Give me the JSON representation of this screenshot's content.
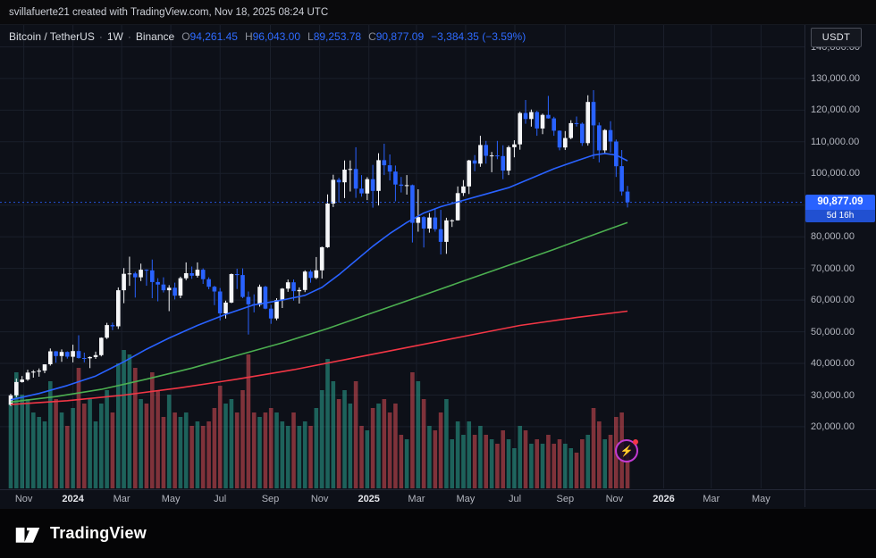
{
  "topbar": {
    "attribution": "svillafuerte21 created with TradingView.com, Nov 18, 2025 08:24 UTC"
  },
  "legend": {
    "symbol": "Bitcoin / TetherUS",
    "sep": "·",
    "interval": "1W",
    "exchange": "Binance",
    "ohlc": [
      {
        "k": "O",
        "v": "94,261.45"
      },
      {
        "k": "H",
        "v": "96,043.00"
      },
      {
        "k": "L",
        "v": "89,253.78"
      },
      {
        "k": "C",
        "v": "90,877.09"
      }
    ],
    "change": "−3,384.35 (−3.59%)"
  },
  "price_axis": {
    "currency_button": "USDT",
    "last_price_label": "90,877.09",
    "countdown": "5d 16h"
  },
  "icons": {
    "boost_glyph": "⚡"
  },
  "footer": {
    "brand": "TradingView"
  },
  "colors": {
    "accent_blue": "#2962ff",
    "candle_up": "#f5f6f8",
    "candle_down": "#2962ff",
    "volume_up": "rgba(44,166,148,0.55)",
    "volume_down": "rgba(242,84,91,0.5)",
    "ma_fast": "#2962ff",
    "ma_mid": "#4caf50",
    "ma_slow": "#f23645",
    "grid": "#1a1f2b",
    "axis_text": "#b2b5be",
    "badge_bg": "#2962ff"
  },
  "chart_data": {
    "type": "candlestick",
    "title": "Bitcoin / TetherUS 1W Binance",
    "interval": "1W",
    "start_week": "2023-10-16",
    "last_price": 90877.09,
    "volume_unit": "relative",
    "legend_position": "top-left",
    "grid": true,
    "y_range": [
      14000,
      147000
    ],
    "y_ticks": [
      {
        "price": 140000,
        "label": "140,000.00"
      },
      {
        "price": 130000,
        "label": "130,000.00"
      },
      {
        "price": 120000,
        "label": "120,000.00"
      },
      {
        "price": 110000,
        "label": "110,000.00"
      },
      {
        "price": 100000,
        "label": "100,000.00"
      },
      {
        "price": 90000,
        "label": ""
      },
      {
        "price": 80000,
        "label": "80,000.00"
      },
      {
        "price": 70000,
        "label": "70,000.00"
      },
      {
        "price": 60000,
        "label": "60,000.00"
      },
      {
        "price": 50000,
        "label": "50,000.00"
      },
      {
        "price": 40000,
        "label": "40,000.00"
      },
      {
        "price": 30000,
        "label": "30,000.00"
      },
      {
        "price": 20000,
        "label": "20,000.00"
      }
    ],
    "x_axis_labels": [
      {
        "label": "Nov",
        "week": 2.3
      },
      {
        "label": "2024",
        "week": 11,
        "year": true
      },
      {
        "label": "Mar",
        "week": 19.6
      },
      {
        "label": "May",
        "week": 28.3
      },
      {
        "label": "Jul",
        "week": 37
      },
      {
        "label": "Sep",
        "week": 45.9
      },
      {
        "label": "Nov",
        "week": 54.6
      },
      {
        "label": "2025",
        "week": 63.3,
        "year": true
      },
      {
        "label": "Mar",
        "week": 71.7
      },
      {
        "label": "May",
        "week": 80.4
      },
      {
        "label": "Jul",
        "week": 89.1
      },
      {
        "label": "Sep",
        "week": 98
      },
      {
        "label": "Nov",
        "week": 106.7
      },
      {
        "label": "2026",
        "week": 115.4,
        "year": true
      },
      {
        "label": "Mar",
        "week": 123.8
      },
      {
        "label": "May",
        "week": 132.6
      }
    ],
    "candles_format": [
      "open",
      "high",
      "low",
      "close",
      "volume"
    ],
    "candles": [
      [
        26900,
        30400,
        26500,
        29900,
        95
      ],
      [
        29900,
        35200,
        29300,
        34100,
        130
      ],
      [
        34100,
        36000,
        33900,
        34900,
        105
      ],
      [
        34900,
        38000,
        34500,
        37100,
        100
      ],
      [
        37100,
        37900,
        35500,
        37400,
        85
      ],
      [
        37400,
        38400,
        35800,
        37700,
        80
      ],
      [
        37700,
        39700,
        36900,
        39700,
        75
      ],
      [
        39700,
        44700,
        39300,
        43800,
        120
      ],
      [
        43800,
        43900,
        40200,
        42300,
        100
      ],
      [
        42300,
        44400,
        40500,
        43600,
        85
      ],
      [
        43600,
        43800,
        41500,
        42100,
        70
      ],
      [
        42100,
        45900,
        40300,
        43900,
        90
      ],
      [
        43900,
        48900,
        41500,
        41700,
        135
      ],
      [
        41700,
        43400,
        40300,
        41600,
        95
      ],
      [
        41600,
        42200,
        38500,
        42000,
        100
      ],
      [
        42000,
        43700,
        41400,
        42600,
        75
      ],
      [
        42600,
        48200,
        42200,
        48100,
        95
      ],
      [
        48100,
        52800,
        47700,
        52100,
        110
      ],
      [
        52100,
        52900,
        50500,
        51700,
        85
      ],
      [
        51700,
        64000,
        50900,
        63100,
        140
      ],
      [
        63100,
        70100,
        59000,
        68300,
        155
      ],
      [
        68300,
        73700,
        64500,
        68400,
        150
      ],
      [
        68400,
        68900,
        60800,
        67200,
        135
      ],
      [
        67200,
        71500,
        66000,
        69600,
        100
      ],
      [
        69600,
        69700,
        64500,
        69400,
        95
      ],
      [
        69400,
        72800,
        60600,
        65700,
        130
      ],
      [
        65700,
        66900,
        59600,
        64900,
        110
      ],
      [
        64900,
        67200,
        62400,
        63100,
        80
      ],
      [
        63100,
        64700,
        56500,
        63900,
        105
      ],
      [
        63900,
        65500,
        60200,
        61400,
        85
      ],
      [
        61400,
        67400,
        60600,
        66900,
        80
      ],
      [
        66900,
        71900,
        66300,
        68500,
        85
      ],
      [
        68500,
        70600,
        66700,
        67700,
        70
      ],
      [
        67700,
        71900,
        67100,
        69600,
        75
      ],
      [
        69600,
        70000,
        65100,
        66600,
        70
      ],
      [
        66600,
        67200,
        63400,
        64200,
        75
      ],
      [
        64200,
        64500,
        58400,
        62700,
        90
      ],
      [
        62700,
        63800,
        53500,
        55800,
        115
      ],
      [
        55800,
        59800,
        54200,
        59200,
        95
      ],
      [
        59200,
        68400,
        59000,
        68200,
        100
      ],
      [
        68200,
        69900,
        63500,
        67900,
        85
      ],
      [
        67900,
        70000,
        60600,
        61000,
        110
      ],
      [
        61000,
        62700,
        49100,
        58700,
        150
      ],
      [
        58700,
        61800,
        56100,
        58500,
        85
      ],
      [
        58500,
        64900,
        57900,
        64200,
        80
      ],
      [
        64200,
        64500,
        57100,
        57300,
        85
      ],
      [
        57300,
        58500,
        52500,
        54200,
        90
      ],
      [
        54200,
        60600,
        53600,
        60000,
        85
      ],
      [
        60000,
        63800,
        57500,
        63600,
        75
      ],
      [
        63600,
        66500,
        62600,
        65600,
        70
      ],
      [
        65600,
        66500,
        59800,
        62800,
        85
      ],
      [
        62800,
        64000,
        58900,
        63200,
        70
      ],
      [
        63200,
        69400,
        62500,
        69000,
        75
      ],
      [
        69000,
        69500,
        65500,
        67000,
        70
      ],
      [
        67000,
        73600,
        66600,
        69400,
        90
      ],
      [
        69400,
        76900,
        66800,
        76700,
        110
      ],
      [
        76700,
        93400,
        76500,
        90500,
        145
      ],
      [
        90500,
        99600,
        89400,
        98000,
        120
      ],
      [
        98000,
        98600,
        90800,
        97200,
        100
      ],
      [
        97200,
        104100,
        92200,
        101200,
        110
      ],
      [
        101200,
        104100,
        94300,
        101400,
        95
      ],
      [
        101400,
        108300,
        92300,
        95200,
        120
      ],
      [
        95200,
        99500,
        92700,
        93700,
        70
      ],
      [
        93700,
        98800,
        91600,
        98200,
        65
      ],
      [
        98200,
        102700,
        89200,
        94500,
        90
      ],
      [
        94500,
        106400,
        89900,
        104200,
        95
      ],
      [
        104200,
        109400,
        99500,
        102600,
        100
      ],
      [
        102600,
        106000,
        97800,
        100600,
        85
      ],
      [
        100600,
        102500,
        91200,
        96500,
        95
      ],
      [
        96500,
        98900,
        94000,
        96100,
        60
      ],
      [
        96100,
        99500,
        93300,
        96300,
        55
      ],
      [
        96300,
        96500,
        78200,
        84400,
        130
      ],
      [
        84400,
        95000,
        81600,
        86200,
        120
      ],
      [
        86200,
        86500,
        76600,
        82600,
        100
      ],
      [
        82600,
        87500,
        81300,
        86100,
        70
      ],
      [
        86100,
        88800,
        81600,
        82400,
        65
      ],
      [
        82400,
        88500,
        74400,
        78400,
        85
      ],
      [
        78400,
        86000,
        74600,
        85200,
        100
      ],
      [
        85200,
        85500,
        83100,
        85200,
        55
      ],
      [
        85200,
        95900,
        85100,
        93800,
        75
      ],
      [
        93800,
        97900,
        92900,
        95900,
        60
      ],
      [
        95900,
        104300,
        93500,
        104100,
        75
      ],
      [
        104100,
        105800,
        100700,
        103100,
        60
      ],
      [
        103100,
        111900,
        102100,
        109000,
        70
      ],
      [
        109000,
        110300,
        103100,
        105600,
        60
      ],
      [
        105600,
        106800,
        100400,
        105700,
        55
      ],
      [
        105700,
        110300,
        104500,
        105500,
        50
      ],
      [
        105500,
        108900,
        98200,
        100900,
        65
      ],
      [
        100900,
        108800,
        99500,
        108300,
        55
      ],
      [
        108300,
        110500,
        105100,
        109200,
        45
      ],
      [
        109200,
        119500,
        107500,
        119100,
        70
      ],
      [
        119100,
        123200,
        115700,
        117200,
        65
      ],
      [
        117200,
        120200,
        114800,
        119400,
        50
      ],
      [
        119400,
        119800,
        111900,
        114200,
        55
      ],
      [
        114200,
        118900,
        112400,
        118500,
        50
      ],
      [
        118500,
        124500,
        117300,
        117400,
        60
      ],
      [
        117400,
        117900,
        111900,
        113500,
        50
      ],
      [
        113500,
        113600,
        107300,
        108200,
        55
      ],
      [
        108200,
        113400,
        107400,
        111200,
        50
      ],
      [
        111200,
        116800,
        110800,
        115900,
        45
      ],
      [
        115900,
        118000,
        114800,
        115700,
        40
      ],
      [
        115700,
        116100,
        108700,
        109600,
        55
      ],
      [
        109600,
        124700,
        108800,
        122600,
        60
      ],
      [
        122600,
        126300,
        104600,
        115200,
        90
      ],
      [
        115200,
        116100,
        103500,
        107300,
        75
      ],
      [
        107300,
        114000,
        106200,
        113700,
        55
      ],
      [
        113700,
        116500,
        106600,
        110100,
        60
      ],
      [
        110100,
        110700,
        98900,
        102300,
        80
      ],
      [
        102300,
        107400,
        93000,
        94300,
        85
      ],
      [
        94261.45,
        96043,
        89253.78,
        90877.09,
        45
      ]
    ],
    "moving_averages": [
      {
        "name": "ma-fast",
        "color": "#2962ff",
        "points": [
          [
            0,
            28500
          ],
          [
            5,
            30500
          ],
          [
            10,
            33000
          ],
          [
            15,
            36000
          ],
          [
            20,
            40500
          ],
          [
            24,
            44500
          ],
          [
            28,
            48000
          ],
          [
            33,
            52000
          ],
          [
            38,
            55500
          ],
          [
            43,
            58500
          ],
          [
            48,
            60000
          ],
          [
            52,
            61500
          ],
          [
            55,
            64000
          ],
          [
            58,
            68000
          ],
          [
            61,
            72500
          ],
          [
            64,
            77000
          ],
          [
            67,
            81000
          ],
          [
            70,
            84500
          ],
          [
            73,
            87500
          ],
          [
            76,
            89500
          ],
          [
            80,
            91500
          ],
          [
            84,
            93500
          ],
          [
            88,
            95500
          ],
          [
            92,
            98500
          ],
          [
            96,
            101500
          ],
          [
            100,
            104000
          ],
          [
            103,
            105800
          ],
          [
            105,
            106300
          ],
          [
            107,
            105800
          ],
          [
            109,
            104000
          ]
        ]
      },
      {
        "name": "ma-mid",
        "color": "#4caf50",
        "points": [
          [
            0,
            27800
          ],
          [
            8,
            29500
          ],
          [
            16,
            31800
          ],
          [
            24,
            35000
          ],
          [
            32,
            38500
          ],
          [
            40,
            42500
          ],
          [
            48,
            46500
          ],
          [
            56,
            51000
          ],
          [
            64,
            56000
          ],
          [
            72,
            61000
          ],
          [
            80,
            66000
          ],
          [
            88,
            71000
          ],
          [
            96,
            76000
          ],
          [
            102,
            80000
          ],
          [
            109,
            84500
          ]
        ]
      },
      {
        "name": "ma-slow",
        "color": "#f23645",
        "points": [
          [
            0,
            27000
          ],
          [
            10,
            28200
          ],
          [
            20,
            30000
          ],
          [
            30,
            32300
          ],
          [
            40,
            35000
          ],
          [
            50,
            38000
          ],
          [
            60,
            41500
          ],
          [
            70,
            45000
          ],
          [
            80,
            48500
          ],
          [
            90,
            52000
          ],
          [
            100,
            54500
          ],
          [
            109,
            56500
          ]
        ]
      }
    ]
  }
}
